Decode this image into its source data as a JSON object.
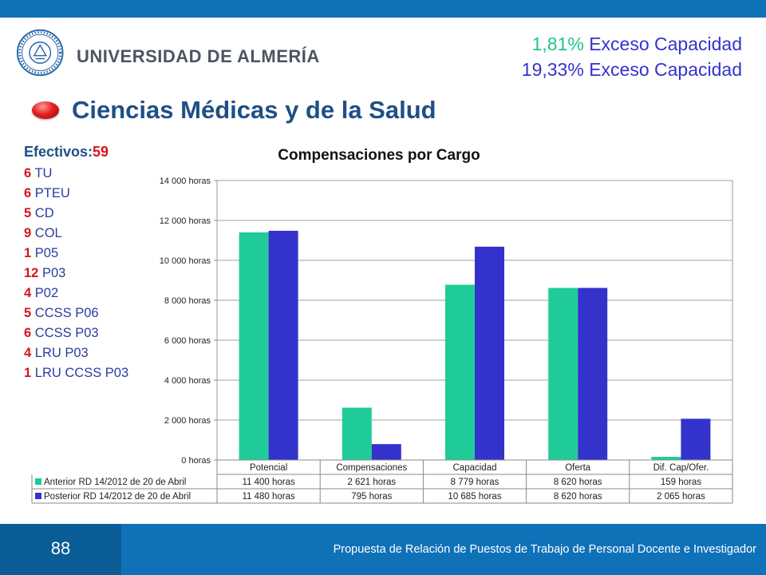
{
  "header": {
    "university_name": "UNIVERSIDAD DE ALMERÍA",
    "excess_line1_pct": "1,81%",
    "excess_line1_label": " Exceso Capacidad",
    "excess_line2_pct": "19,33%",
    "excess_line2_label": " Exceso Capacidad"
  },
  "slide": {
    "title": "Ciencias Médicas y de la Salud"
  },
  "staff": {
    "heading_label": "Efectivos:",
    "heading_count": "59",
    "items": [
      {
        "count": "6",
        "label": " TU"
      },
      {
        "count": "6",
        "label": " PTEU"
      },
      {
        "count": "5",
        "label": " CD"
      },
      {
        "count": "9",
        "label": " COL"
      },
      {
        "count": "1",
        "label": " P05"
      },
      {
        "count": "12",
        "label": " P03"
      },
      {
        "count": "4",
        "label": " P02"
      },
      {
        "count": "5",
        "label": " CCSS P06"
      },
      {
        "count": "6",
        "label": " CCSS P03"
      },
      {
        "count": "4",
        "label": " LRU P03"
      },
      {
        "count": "1",
        "label": " LRU CCSS P03"
      }
    ]
  },
  "chart_data": {
    "type": "bar",
    "title": "Compensaciones por Cargo",
    "categories": [
      "Potencial",
      "Compensaciones",
      "Capacidad",
      "Oferta",
      "Dif. Cap/Ofer."
    ],
    "series": [
      {
        "name": "Anterior RD 14/2012 de 20 de Abril",
        "color": "#1fcc99",
        "values": [
          11400,
          2621,
          8779,
          8620,
          159
        ],
        "labels": [
          "11 400 horas",
          "2 621 horas",
          "8 779 horas",
          "8 620 horas",
          "159 horas"
        ]
      },
      {
        "name": "Posterior RD 14/2012 de 20 de Abril",
        "color": "#3333cc",
        "values": [
          11480,
          795,
          10685,
          8620,
          2065
        ],
        "labels": [
          "11 480 horas",
          "795 horas",
          "10 685 horas",
          "8 620 horas",
          "2 065 horas"
        ]
      }
    ],
    "ylim": [
      0,
      14000
    ],
    "yticks": [
      0,
      2000,
      4000,
      6000,
      8000,
      10000,
      12000,
      14000
    ],
    "ytick_labels": [
      "0 horas",
      "2 000 horas",
      "4 000 horas",
      "6 000 horas",
      "8 000 horas",
      "10 000 horas",
      "12 000 horas",
      "14 000 horas"
    ],
    "grid": true,
    "legend": "data-table-below"
  },
  "footer": {
    "page_number": "88",
    "text": "Propuesta de Relación de Puestos de Trabajo de Personal Docente e Investigador"
  }
}
